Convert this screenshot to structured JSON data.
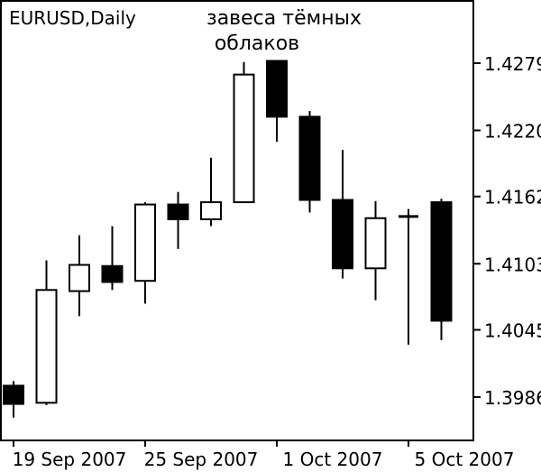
{
  "chart_data": {
    "type": "candlestick",
    "symbol_label": "EURUSD,Daily",
    "annotation": [
      "завеса тёмных",
      "облаков"
    ],
    "y_ticks": [
      "1.4279",
      "1.4220",
      "1.4162",
      "1.4103",
      "1.4045",
      "1.3986"
    ],
    "x_ticks": [
      "19 Sep 2007",
      "25 Sep 2007",
      "1 Oct 2007",
      "5 Oct 2007"
    ],
    "ylim": [
      1.3955,
      1.4335
    ],
    "candles": [
      {
        "open": 1.3996,
        "high": 1.4,
        "low": 1.3968,
        "close": 1.398
      },
      {
        "open": 1.3981,
        "high": 1.4106,
        "low": 1.3979,
        "close": 1.408
      },
      {
        "open": 1.4079,
        "high": 1.4128,
        "low": 1.4057,
        "close": 1.4102
      },
      {
        "open": 1.4101,
        "high": 1.4136,
        "low": 1.408,
        "close": 1.4087
      },
      {
        "open": 1.4088,
        "high": 1.4157,
        "low": 1.4068,
        "close": 1.4155
      },
      {
        "open": 1.4155,
        "high": 1.4166,
        "low": 1.4116,
        "close": 1.4142
      },
      {
        "open": 1.4142,
        "high": 1.4196,
        "low": 1.4136,
        "close": 1.4157
      },
      {
        "open": 1.4157,
        "high": 1.428,
        "low": 1.4157,
        "close": 1.4269
      },
      {
        "open": 1.4281,
        "high": 1.4281,
        "low": 1.421,
        "close": 1.4232
      },
      {
        "open": 1.4232,
        "high": 1.4237,
        "low": 1.4148,
        "close": 1.4159
      },
      {
        "open": 1.4159,
        "high": 1.4203,
        "low": 1.409,
        "close": 1.4099
      },
      {
        "open": 1.4099,
        "high": 1.4158,
        "low": 1.4071,
        "close": 1.4143
      },
      {
        "open": 1.4145,
        "high": 1.4151,
        "low": 1.4032,
        "close": 1.4144
      },
      {
        "open": 1.4157,
        "high": 1.416,
        "low": 1.4036,
        "close": 1.4053
      }
    ],
    "colors": {
      "bull_body": "#ffffff",
      "bear_body": "#000000",
      "line": "#000000"
    }
  }
}
